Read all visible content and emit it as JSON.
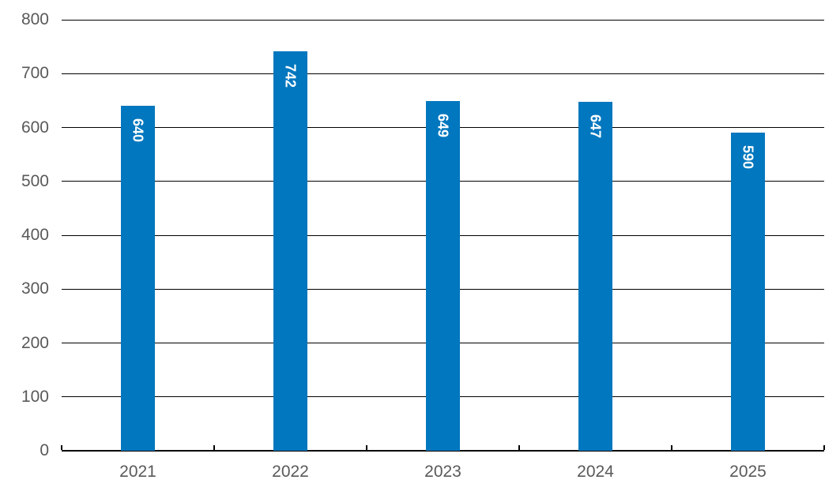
{
  "chart_data": {
    "type": "bar",
    "categories": [
      "2021",
      "2022",
      "2023",
      "2024",
      "2025"
    ],
    "values": [
      640,
      742,
      649,
      647,
      590
    ],
    "title": "",
    "xlabel": "",
    "ylabel": "",
    "ylim": [
      0,
      800
    ],
    "ytick_step": 100,
    "ytick_labels": [
      "0",
      "100",
      "200",
      "300",
      "400",
      "500",
      "600",
      "700",
      "800"
    ],
    "grid": true,
    "legend": false,
    "bar_label_position": "inside-end",
    "bar_labels_rotated_90deg": true,
    "colors": {
      "bar": "#0077BE",
      "bar_label": "#FFFFFF",
      "axis_text": "#595959",
      "gridline": "#000000",
      "axis_line": "#000000",
      "background": "#FFFFFF"
    }
  }
}
